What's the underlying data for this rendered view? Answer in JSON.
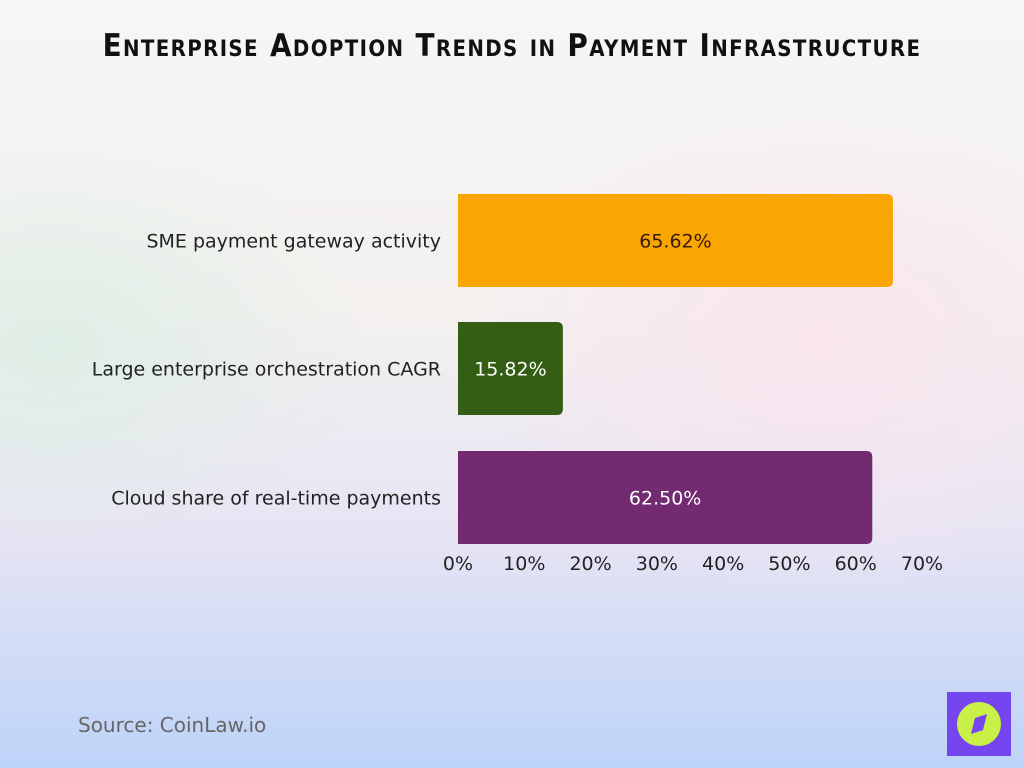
{
  "chart_data": {
    "type": "bar",
    "orientation": "horizontal",
    "title": "Enterprise Adoption Trends in Payment Infrastructure",
    "categories": [
      "SME payment gateway activity",
      "Large enterprise orchestration CAGR",
      "Cloud share of real-time payments"
    ],
    "values": [
      65.62,
      15.82,
      62.5
    ],
    "data_labels": [
      "65.62%",
      "15.82%",
      "62.50%"
    ],
    "colors": [
      "#f9a602",
      "#335e13",
      "#722a70"
    ],
    "label_colors": [
      "#3a1a0a",
      "#ffffff",
      "#ffffff"
    ],
    "xlim": [
      0,
      70
    ],
    "xticks": [
      "0%",
      "10%",
      "20%",
      "30%",
      "40%",
      "50%",
      "60%",
      "70%"
    ],
    "xlabel": "",
    "ylabel": "",
    "grid": false,
    "legend": "none"
  },
  "source": "Source: CoinLaw.io",
  "logo": {
    "icon": "compass-icon",
    "bg": "#7546f0",
    "fg": "#c8f046"
  }
}
